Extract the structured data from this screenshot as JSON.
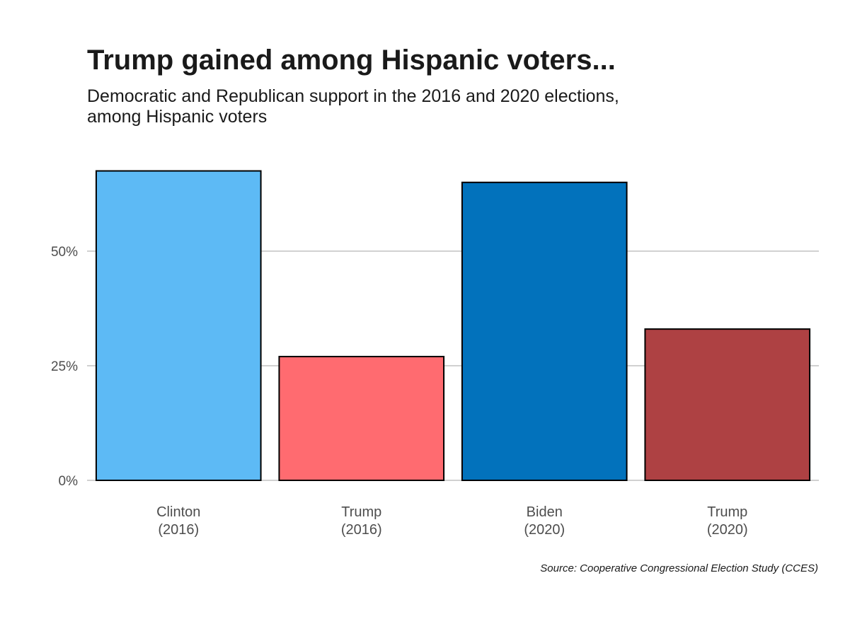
{
  "chart_data": {
    "type": "bar",
    "title": "Trump gained among Hispanic voters...",
    "subtitle_lines": [
      "Democratic and Republican support in the 2016 and 2020 elections,",
      "among Hispanic voters"
    ],
    "caption": "Source: Cooperative Congressional Election Study (CCES)",
    "categories": [
      [
        "Clinton",
        "(2016)"
      ],
      [
        "Trump",
        "(2016)"
      ],
      [
        "Biden",
        "(2020)"
      ],
      [
        "Trump",
        "(2020)"
      ]
    ],
    "values": [
      67.5,
      27,
      65,
      33
    ],
    "colors": [
      "#5DBAF5",
      "#FF6B70",
      "#0272BC",
      "#AE4143"
    ],
    "yticks": [
      0,
      25,
      50
    ],
    "ytick_labels": [
      "0%",
      "25%",
      "50%"
    ],
    "ylim": [
      0,
      70
    ],
    "grid": true,
    "xlabel": "",
    "ylabel": ""
  }
}
